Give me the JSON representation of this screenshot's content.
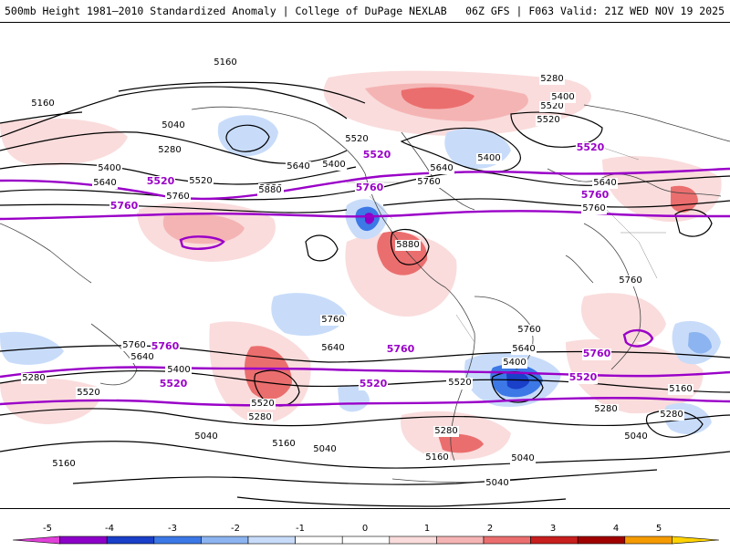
{
  "header": {
    "title": "500mb Height 1981–2010 Standardized Anomaly | College of DuPage NEXLAB",
    "run_info": "06Z GFS | F063 Valid: 21Z WED NOV 19 2025"
  },
  "colors": {
    "contour": "#000000",
    "highlight_contour": "#9a00c8",
    "coast": "#444444",
    "border": "#888888",
    "scale": [
      "#e040d8",
      "#8c00c8",
      "#1a3fc8",
      "#3c78e6",
      "#8cb4f0",
      "#c8dcfa",
      "#ffffff",
      "#ffffff",
      "#fadcdc",
      "#f5b4b4",
      "#eb6e6e",
      "#c81e1e",
      "#a00000",
      "#f59b00",
      "#ffd200"
    ]
  },
  "map": {
    "contour_labels": [
      "5160",
      "5160",
      "5040",
      "5280",
      "5400",
      "5640",
      "5520",
      "5760",
      "5880",
      "5640",
      "5520",
      "5400",
      "5640",
      "5760",
      "5880",
      "5520",
      "5280",
      "5400",
      "5520",
      "5400",
      "5640",
      "5760",
      "5880",
      "5760",
      "5640",
      "5520",
      "5400",
      "5280",
      "5520",
      "5040",
      "5160",
      "5280",
      "5520",
      "5640",
      "5760",
      "5400",
      "5520",
      "5280",
      "5160",
      "5040",
      "5160",
      "5040",
      "5280",
      "5520",
      "5400",
      "5640",
      "5760",
      "5760",
      "5160",
      "5280",
      "5040",
      "5040"
    ],
    "highlight_labels": [
      "5520",
      "5760",
      "5760",
      "5760",
      "5520",
      "5520",
      "5760",
      "5760",
      "5520",
      "5520",
      "5760",
      "5520"
    ]
  },
  "colorbar": {
    "ticks": [
      "-5",
      "-4",
      "-3",
      "-2",
      "-1",
      "0",
      "1",
      "2",
      "3",
      "4",
      "5"
    ]
  }
}
